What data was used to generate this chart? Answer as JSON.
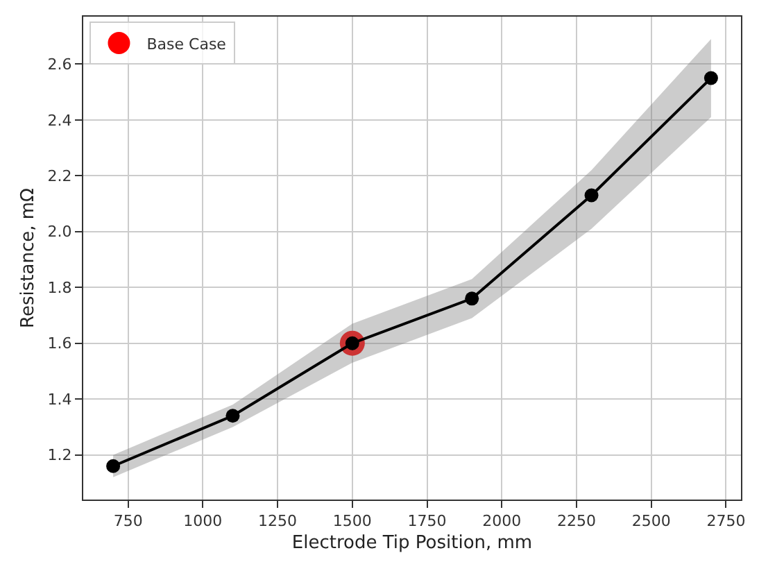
{
  "chart_data": {
    "type": "line",
    "xlabel": "Electrode Tip Position, mm",
    "ylabel": "Resistance, mΩ",
    "xlim": [
      600,
      2800
    ],
    "xticks": [
      750,
      1000,
      1250,
      1500,
      1750,
      2000,
      2250,
      2500,
      2750
    ],
    "ylim": [
      1.04,
      2.77
    ],
    "yticks": [
      {
        "value": 1.2,
        "label": "1.2"
      },
      {
        "value": 1.4,
        "label": "1.4"
      },
      {
        "value": 1.6,
        "label": "1.6"
      },
      {
        "value": 1.8,
        "label": "1.8"
      },
      {
        "value": 2.0,
        "label": "2.0"
      },
      {
        "value": 2.2,
        "label": "2.2"
      },
      {
        "value": 2.4,
        "label": "2.4"
      },
      {
        "value": 2.6,
        "label": "2.6"
      }
    ],
    "grid": true,
    "legend": "top left",
    "marker": "circle",
    "line_style": "solid",
    "series": [
      {
        "color": "#000000",
        "x": [
          700,
          1100,
          1500,
          1900,
          2300,
          2700
        ],
        "values": [
          1.16,
          1.34,
          1.6,
          1.76,
          2.13,
          2.55
        ],
        "lower": [
          1.12,
          1.3,
          1.53,
          1.69,
          2.01,
          2.41
        ],
        "upper": [
          1.2,
          1.38,
          1.67,
          1.83,
          2.22,
          2.69
        ]
      },
      {
        "type": "scatter",
        "name": "Base Case",
        "color": "#ff0000",
        "x": [
          1500
        ],
        "values": [
          1.6
        ]
      }
    ]
  }
}
